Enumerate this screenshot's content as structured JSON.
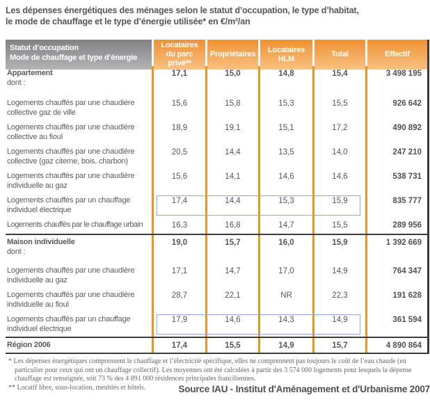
{
  "title": {
    "line1": "Les dépenses énergétiques des ménages selon le statut d’occupation, le type d’habitat,",
    "line2": "le mode de chauffage et le type d’énergie utilisée* en €/m²/an"
  },
  "chart_data": {
    "type": "table",
    "unit": "€/m²/an",
    "header": {
      "col1": [
        "Statut d’occupation",
        "Mode de chauffage et type d’énergie"
      ],
      "cols": [
        "Locataires du parc privé**",
        "Propriétaires",
        "Locataires HLM",
        "Total",
        "Effectif"
      ]
    },
    "rows": [
      {
        "label": "Appartement",
        "sub": "dont :",
        "bold": true,
        "size": "tall",
        "values": [
          "17,1",
          "15,0",
          "14,8",
          "15,4"
        ],
        "effectif": "3 498 195"
      },
      {
        "label": "Logements chauffés par une chaudière collective gaz de ville",
        "size": "mid",
        "values": [
          "15,6",
          "15,8",
          "15,3",
          "15,5"
        ],
        "effectif": "926 642"
      },
      {
        "label": "Logements chauffés par une chaudière collective au fioul",
        "size": "mid",
        "values": [
          "18,9",
          "19,1",
          "15,1",
          "17,2"
        ],
        "effectif": "490 892"
      },
      {
        "label": "Logements chauffés par une chaudière collective (gaz citerne, bois, charbon)",
        "size": "mid",
        "values": [
          "20,5",
          "14,4",
          "13,5",
          "14,0"
        ],
        "effectif": "247 210"
      },
      {
        "label": "Logements chauffés par une chaudière individuelle au gaz",
        "size": "mid",
        "values": [
          "15,6",
          "14,1",
          "14,6",
          "14,6"
        ],
        "effectif": "538 731"
      },
      {
        "label": "Logements chauffés par un chauffage individuel électrique",
        "size": "mid",
        "highlight": true,
        "values": [
          "17,4",
          "14,4",
          "15,3",
          "15,9"
        ],
        "effectif": "835 777"
      },
      {
        "label": "Logements chauffés par le chauffage urbain",
        "size": "short",
        "condensed": true,
        "values": [
          "16,3",
          "16,8",
          "14,7",
          "15,5"
        ],
        "effectif": "289 956"
      },
      {
        "label": "Maison individuelle",
        "sub": "dont :",
        "bold": true,
        "rule": true,
        "size": "tall",
        "values": [
          "19,0",
          "15,7",
          "16,0",
          "15,9"
        ],
        "effectif": "1 392 669"
      },
      {
        "label": "Logements chauffés par une chaudière individuelle au gaz",
        "size": "mid",
        "values": [
          "17,1",
          "14,7",
          "17,0",
          "14,9"
        ],
        "effectif": "764 347"
      },
      {
        "label": "Logements chauffés par une chaudière individuelle au fioul",
        "size": "mid",
        "values": [
          "28,7",
          "22,1",
          "NR",
          "22,3"
        ],
        "effectif": "191 628"
      },
      {
        "label": "Logements chauffés par un chauffage individuel électrique",
        "size": "mid",
        "highlight": true,
        "values": [
          "17,9",
          "14,6",
          "14,3",
          "14,9"
        ],
        "effectif": "361 594"
      },
      {
        "label": "Région 2006",
        "bold": true,
        "rule": true,
        "size": "short",
        "values": [
          "17,4",
          "15,5",
          "14,9",
          "15,7"
        ],
        "effectif": "4 890 864"
      }
    ]
  },
  "footnotes": {
    "notes": [
      "* Les dépenses énergétiques comprennent le chauffage et l’électricité spécifique, elles ne comprennent pas toujours le coût de l’eau chaude (en particulier pour ceux qui ont un chauffage collectif). Les moyennes ont été calculées à partir des 3 574 000 logements pour lesquels la dépense chauffage est renseignée, soit 73 % des 4 891 000 résidences principales franciliennes.",
      "** Locatif libre, sous-location, meublés et hôtels."
    ]
  },
  "source": "Source IAU - Institut d'Aménagement et d'Urbanisme 2007",
  "colors": {
    "accent_orange": "#f0941f",
    "header_orange_top": "#ee9133",
    "header_orange_bottom": "#f9c183",
    "header_gray_top": "#828285",
    "header_gray_bottom": "#b4b4b6",
    "rule_dark": "#3b3b3d",
    "highlight_blue": "#96a4db",
    "text": "#58585a"
  }
}
